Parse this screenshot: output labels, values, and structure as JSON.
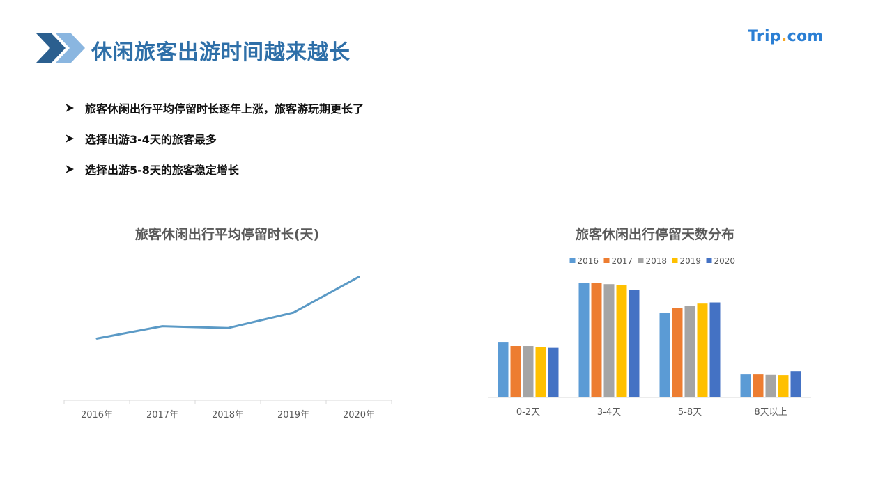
{
  "header": {
    "title": "休闲旅客出游时间越来越长",
    "brand": {
      "left": "Trip",
      "dot": ".",
      "right": "com"
    }
  },
  "bullets": [
    "旅客休闲出行平均停留时长逐年上涨，旅客游玩期更长了",
    "选择出游3-4天的旅客最多",
    "选择出游5-8天的旅客稳定增长"
  ],
  "colors": {
    "title": "#2e6fa8",
    "brand": "#2b7fd4",
    "line": "#5b9ac6",
    "series": [
      "#5b9bd5",
      "#ed7d31",
      "#a5a5a5",
      "#ffc000",
      "#4472c4"
    ]
  },
  "chart_data": [
    {
      "type": "line",
      "title": "旅客休闲出行平均停留时长(天)",
      "categories": [
        "2016年",
        "2017年",
        "2018年",
        "2019年",
        "2020年"
      ],
      "values": [
        3.0,
        3.2,
        3.17,
        3.42,
        4.0
      ],
      "ylim": [
        2.0,
        4.2
      ],
      "grid": false,
      "y_tick_labels_shown": false
    },
    {
      "type": "bar",
      "title": "旅客休闲出行停留天数分布",
      "categories": [
        "0-2天",
        "3-4天",
        "5-8天",
        "8天以上"
      ],
      "series": [
        {
          "name": "2016",
          "values": [
            24,
            50,
            37,
            10
          ]
        },
        {
          "name": "2017",
          "values": [
            22.5,
            50,
            39,
            10
          ]
        },
        {
          "name": "2018",
          "values": [
            22.5,
            49.5,
            40,
            9.8
          ]
        },
        {
          "name": "2019",
          "values": [
            22,
            49,
            41,
            9.7
          ]
        },
        {
          "name": "2020",
          "values": [
            21.7,
            47,
            41.5,
            11.5
          ]
        }
      ],
      "ylim": [
        0,
        52
      ],
      "legend": "top",
      "grid": false,
      "y_tick_labels_shown": false
    }
  ]
}
